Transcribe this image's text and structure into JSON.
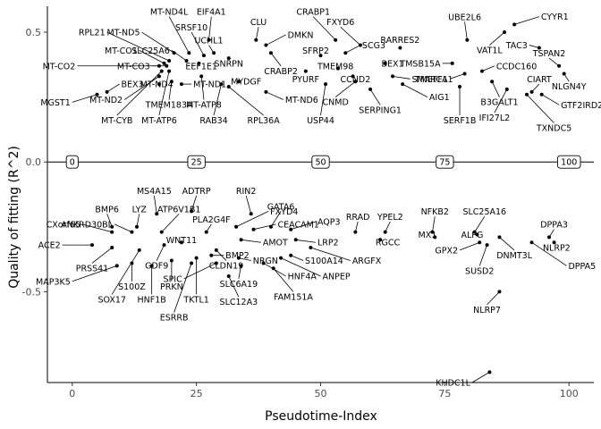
{
  "chart_data": {
    "type": "scatter",
    "xlabel": "Pseudotime-Index",
    "ylabel": "Quality of fitting (R^2)",
    "xlim": [
      -5,
      105
    ],
    "ylim": [
      -0.85,
      0.6
    ],
    "x_ticks": [
      "0",
      "25",
      "50",
      "75",
      "100"
    ],
    "y_ticks": [
      "-0.5",
      "0.0",
      "0.5"
    ],
    "x_tick_values": [
      0,
      25,
      50,
      75,
      100
    ],
    "y_tick_values": [
      -0.5,
      0.0,
      0.5
    ],
    "zero_line": true,
    "pseudotime_marks": [
      "0",
      "25",
      "50",
      "75",
      "100"
    ],
    "pseudotime_mark_values": [
      0,
      25,
      50,
      75,
      100
    ],
    "points": [
      {
        "label": "MT-CO2",
        "x": 17.5,
        "y": 0.37,
        "lx": 1,
        "ly": 0.37
      },
      {
        "label": "MT-CO1",
        "x": 18.5,
        "y": 0.38,
        "lx": 13.5,
        "ly": 0.43
      },
      {
        "label": "MT-CO3",
        "x": 19,
        "y": 0.37,
        "lx": 16,
        "ly": 0.37
      },
      {
        "label": "RPL21",
        "x": 19.5,
        "y": 0.39,
        "lx": 7,
        "ly": 0.5
      },
      {
        "label": "MT-ND5",
        "x": 20.5,
        "y": 0.42,
        "lx": 14,
        "ly": 0.5
      },
      {
        "label": "SLC25A6",
        "x": 23,
        "y": 0.39,
        "lx": 20,
        "ly": 0.43
      },
      {
        "label": "MT-ND4L",
        "x": 23.5,
        "y": 0.42,
        "lx": 19.5,
        "ly": 0.56
      },
      {
        "label": "SRSF10",
        "x": 26.5,
        "y": 0.41,
        "lx": 24,
        "ly": 0.5
      },
      {
        "label": "EIF4A1",
        "x": 27.5,
        "y": 0.47,
        "lx": 28,
        "ly": 0.56
      },
      {
        "label": "UCHL1",
        "x": 28.5,
        "y": 0.42,
        "lx": 27.5,
        "ly": 0.45
      },
      {
        "label": "EEF1E1",
        "x": 25.5,
        "y": 0.38,
        "lx": 26,
        "ly": 0.37
      },
      {
        "label": "SNRPN",
        "x": 31.5,
        "y": 0.4,
        "lx": 31.5,
        "ly": 0.38
      },
      {
        "label": "CLU",
        "x": 37,
        "y": 0.47,
        "lx": 37.5,
        "ly": 0.52
      },
      {
        "label": "DMKN",
        "x": 39,
        "y": 0.45,
        "lx": 43,
        "ly": 0.49
      },
      {
        "label": "CRABP2",
        "x": 40,
        "y": 0.42,
        "lx": 42,
        "ly": 0.37
      },
      {
        "label": "CRABP1",
        "x": 53,
        "y": 0.47,
        "lx": 48.5,
        "ly": 0.56
      },
      {
        "label": "FXYD6",
        "x": 58,
        "y": 0.45,
        "lx": 54,
        "ly": 0.52
      },
      {
        "label": "SFRP2",
        "x": 50,
        "y": 0.41,
        "lx": 49,
        "ly": 0.43
      },
      {
        "label": "SCG3",
        "x": 55,
        "y": 0.42,
        "lx": 58,
        "ly": 0.45
      },
      {
        "label": "TMEM98",
        "x": 53.5,
        "y": 0.36,
        "lx": 53,
        "ly": 0.37
      },
      {
        "label": "PYURF",
        "x": 47,
        "y": 0.35,
        "lx": 47,
        "ly": 0.32
      },
      {
        "label": "CCND2",
        "x": 56.5,
        "y": 0.33,
        "lx": 57,
        "ly": 0.32
      },
      {
        "label": "CNMD",
        "x": 57,
        "y": 0.31,
        "lx": 53,
        "ly": 0.25
      },
      {
        "label": "USP44",
        "x": 51,
        "y": 0.3,
        "lx": 50,
        "ly": 0.18
      },
      {
        "label": "SERPING1",
        "x": 60,
        "y": 0.28,
        "lx": 62,
        "ly": 0.22
      },
      {
        "label": "RARRES2",
        "x": 66,
        "y": 0.44,
        "lx": 66,
        "ly": 0.47
      },
      {
        "label": "BEX1",
        "x": 63,
        "y": 0.38,
        "lx": 64.5,
        "ly": 0.38
      },
      {
        "label": "SMARCA1",
        "x": 64.5,
        "y": 0.33,
        "lx": 68,
        "ly": 0.32
      },
      {
        "label": "AIG1",
        "x": 66.5,
        "y": 0.3,
        "lx": 71.5,
        "ly": 0.25
      },
      {
        "label": "TMSB15A",
        "x": 76.5,
        "y": 0.38,
        "lx": 74.5,
        "ly": 0.38
      },
      {
        "label": "TMEFF1",
        "x": 79,
        "y": 0.34,
        "lx": 76,
        "ly": 0.32
      },
      {
        "label": "SERF1B",
        "x": 78,
        "y": 0.29,
        "lx": 78,
        "ly": 0.18
      },
      {
        "label": "UBE2L6",
        "x": 79.5,
        "y": 0.47,
        "lx": 79,
        "ly": 0.54
      },
      {
        "label": "VAT1L",
        "x": 87,
        "y": 0.5,
        "lx": 84,
        "ly": 0.45
      },
      {
        "label": "CYYR1",
        "x": 89,
        "y": 0.53,
        "lx": 94,
        "ly": 0.56
      },
      {
        "label": "TAC3",
        "x": 94,
        "y": 0.44,
        "lx": 92,
        "ly": 0.45
      },
      {
        "label": "TSPAN2",
        "x": 98,
        "y": 0.37,
        "lx": 96,
        "ly": 0.4
      },
      {
        "label": "NLGN4Y",
        "x": 99,
        "y": 0.34,
        "lx": 100,
        "ly": 0.31
      },
      {
        "label": "CCDC160",
        "x": 82.5,
        "y": 0.35,
        "lx": 85,
        "ly": 0.37
      },
      {
        "label": "B3GALT1",
        "x": 84.5,
        "y": 0.31,
        "lx": 86,
        "ly": 0.25
      },
      {
        "label": "CIART",
        "x": 92.5,
        "y": 0.27,
        "lx": 94,
        "ly": 0.3
      },
      {
        "label": "GTF2IRD2B",
        "x": 94.5,
        "y": 0.26,
        "lx": 98,
        "ly": 0.22
      },
      {
        "label": "IFI27L2",
        "x": 87.5,
        "y": 0.28,
        "lx": 85,
        "ly": 0.19
      },
      {
        "label": "TXNDC5",
        "x": 91.5,
        "y": 0.26,
        "lx": 97,
        "ly": 0.15
      },
      {
        "label": "MGST1",
        "x": 5,
        "y": 0.26,
        "lx": 0,
        "ly": 0.23
      },
      {
        "label": "BEX3",
        "x": 7,
        "y": 0.27,
        "lx": 9.5,
        "ly": 0.3
      },
      {
        "label": "MT-ND4",
        "x": 17.5,
        "y": 0.3,
        "lx": 17,
        "ly": 0.3
      },
      {
        "label": "MT-ND1",
        "x": 22,
        "y": 0.3,
        "lx": 24,
        "ly": 0.3
      },
      {
        "label": "MT-ND2",
        "x": 17.5,
        "y": 0.33,
        "lx": 10.5,
        "ly": 0.24
      },
      {
        "label": "TMEM183A",
        "x": 20,
        "y": 0.31,
        "lx": 19.5,
        "ly": 0.24
      },
      {
        "label": "MT-ATP8",
        "x": 26,
        "y": 0.33,
        "lx": 26.5,
        "ly": 0.24
      },
      {
        "label": "MT-CYB",
        "x": 18,
        "y": 0.35,
        "lx": 9,
        "ly": 0.18
      },
      {
        "label": "MT-ATP6",
        "x": 19.5,
        "y": 0.35,
        "lx": 17.5,
        "ly": 0.18
      },
      {
        "label": "RAB34",
        "x": 30,
        "y": 0.3,
        "lx": 28.5,
        "ly": 0.18
      },
      {
        "label": "RPL36A",
        "x": 31.5,
        "y": 0.29,
        "lx": 38.5,
        "ly": 0.18
      },
      {
        "label": "MYDGF",
        "x": 33.5,
        "y": 0.31,
        "lx": 35,
        "ly": 0.31
      },
      {
        "label": "MT-ND6",
        "x": 39,
        "y": 0.27,
        "lx": 42.5,
        "ly": 0.24
      },
      {
        "label": "MS4A15",
        "x": 17,
        "y": -0.2,
        "lx": 16.5,
        "ly": -0.13
      },
      {
        "label": "ADTRP",
        "x": 24,
        "y": -0.19,
        "lx": 25,
        "ly": -0.13
      },
      {
        "label": "RIN2",
        "x": 36,
        "y": -0.2,
        "lx": 35,
        "ly": -0.13
      },
      {
        "label": "BMP6",
        "x": 8,
        "y": -0.25,
        "lx": 7,
        "ly": -0.2
      },
      {
        "label": "LYZ",
        "x": 13,
        "y": -0.25,
        "lx": 13.5,
        "ly": -0.2
      },
      {
        "label": "ATP6V1B1",
        "x": 18,
        "y": -0.27,
        "lx": 21.5,
        "ly": -0.2
      },
      {
        "label": "FXYD4",
        "x": 33,
        "y": -0.25,
        "lx": 39.5,
        "ly": -0.19
      },
      {
        "label": "GATA6",
        "x": 40,
        "y": -0.25,
        "lx": 42,
        "ly": -0.19
      },
      {
        "label": "CXorf65",
        "x": 8,
        "y": -0.27,
        "lx": 2,
        "ly": -0.24
      },
      {
        "label": "ANKRD30BL",
        "x": 12,
        "y": -0.27,
        "lx": 8.5,
        "ly": -0.24
      },
      {
        "label": "PLA2G4F",
        "x": 27,
        "y": -0.27,
        "lx": 28,
        "ly": -0.24
      },
      {
        "label": "CEACAM1",
        "x": 36.5,
        "y": -0.26,
        "lx": 41,
        "ly": -0.24
      },
      {
        "label": "AQP3",
        "x": 44,
        "y": -0.26,
        "lx": 49,
        "ly": -0.23
      },
      {
        "label": "RRAD",
        "x": 57,
        "y": -0.27,
        "lx": 57.5,
        "ly": -0.23
      },
      {
        "label": "YPEL2",
        "x": 63,
        "y": -0.27,
        "lx": 64,
        "ly": -0.23
      },
      {
        "label": "NFKB2",
        "x": 72.5,
        "y": -0.27,
        "lx": 73,
        "ly": -0.21
      },
      {
        "label": "SLC25A16",
        "x": 81,
        "y": -0.27,
        "lx": 83,
        "ly": -0.21
      },
      {
        "label": "DPPA3",
        "x": 96,
        "y": -0.29,
        "lx": 97,
        "ly": -0.26
      },
      {
        "label": "ACE2",
        "x": 4,
        "y": -0.32,
        "lx": -2,
        "ly": -0.32
      },
      {
        "label": "WNT11",
        "x": 22,
        "y": -0.31,
        "lx": 22,
        "ly": -0.3
      },
      {
        "label": "AMOT",
        "x": 34,
        "y": -0.3,
        "lx": 38,
        "ly": -0.31
      },
      {
        "label": "LRP2",
        "x": 45,
        "y": -0.3,
        "lx": 49,
        "ly": -0.31
      },
      {
        "label": "RGCC",
        "x": 62,
        "y": -0.3,
        "lx": 63.5,
        "ly": -0.31
      },
      {
        "label": "MX1",
        "x": 73,
        "y": -0.29,
        "lx": 71.5,
        "ly": -0.28
      },
      {
        "label": "ALPG",
        "x": 81.5,
        "y": -0.28,
        "lx": 80.5,
        "ly": -0.28
      },
      {
        "label": "GPX2",
        "x": 82,
        "y": -0.31,
        "lx": 78,
        "ly": -0.34
      },
      {
        "label": "DNMT3L",
        "x": 86,
        "y": -0.29,
        "lx": 89,
        "ly": -0.34
      },
      {
        "label": "NLRP2",
        "x": 97,
        "y": -0.31,
        "lx": 97.5,
        "ly": -0.33
      },
      {
        "label": "PRSS41",
        "x": 8,
        "y": -0.33,
        "lx": 4,
        "ly": -0.39
      },
      {
        "label": "BMP2",
        "x": 28,
        "y": -0.36,
        "lx": 30.5,
        "ly": -0.36
      },
      {
        "label": "NRGN",
        "x": 33.5,
        "y": -0.37,
        "lx": 36,
        "ly": -0.38
      },
      {
        "label": "S100A14",
        "x": 44,
        "y": -0.36,
        "lx": 46.5,
        "ly": -0.38
      },
      {
        "label": "ARGFX",
        "x": 48,
        "y": -0.33,
        "lx": 56,
        "ly": -0.38
      },
      {
        "label": "SUSD2",
        "x": 83.5,
        "y": -0.32,
        "lx": 82,
        "ly": -0.4
      },
      {
        "label": "DPPA5",
        "x": 92.5,
        "y": -0.31,
        "lx": 99.5,
        "ly": -0.4
      },
      {
        "label": "GDF9",
        "x": 18.5,
        "y": -0.32,
        "lx": 17,
        "ly": -0.38
      },
      {
        "label": "CLDN19",
        "x": 29,
        "y": -0.34,
        "lx": 31,
        "ly": -0.38
      },
      {
        "label": "SPIC",
        "x": 29,
        "y": -0.39,
        "lx": 22.5,
        "ly": -0.45
      },
      {
        "label": "SLC6A19",
        "x": 34,
        "y": -0.4,
        "lx": 33.5,
        "ly": -0.45
      },
      {
        "label": "HNF4A",
        "x": 38.5,
        "y": -0.39,
        "lx": 43,
        "ly": -0.44
      },
      {
        "label": "ANPEP",
        "x": 42,
        "y": -0.37,
        "lx": 50,
        "ly": -0.44
      },
      {
        "label": "FAM151A",
        "x": 40.5,
        "y": -0.41,
        "lx": 44.5,
        "ly": -0.5
      },
      {
        "label": "SLC12A3",
        "x": 31.5,
        "y": -0.44,
        "lx": 33.5,
        "ly": -0.52
      },
      {
        "label": "MAP3K5",
        "x": 9,
        "y": -0.4,
        "lx": 0,
        "ly": -0.46
      },
      {
        "label": "S100Z",
        "x": 12,
        "y": -0.39,
        "lx": 12,
        "ly": -0.46
      },
      {
        "label": "PRKN",
        "x": 20,
        "y": -0.38,
        "lx": 20,
        "ly": -0.46
      },
      {
        "label": "SOX17",
        "x": 13.5,
        "y": -0.34,
        "lx": 8,
        "ly": -0.51
      },
      {
        "label": "HNF1B",
        "x": 16,
        "y": -0.4,
        "lx": 16,
        "ly": -0.51
      },
      {
        "label": "TKTL1",
        "x": 25,
        "y": -0.37,
        "lx": 25,
        "ly": -0.51
      },
      {
        "label": "ESRRB",
        "x": 24,
        "y": -0.39,
        "lx": 20.5,
        "ly": -0.58
      },
      {
        "label": "NLRP7",
        "x": 86,
        "y": -0.5,
        "lx": 83.5,
        "ly": -0.55
      },
      {
        "label": "KHDC1L",
        "x": 84,
        "y": -0.81,
        "lx": 80.5,
        "ly": -0.85
      }
    ]
  }
}
